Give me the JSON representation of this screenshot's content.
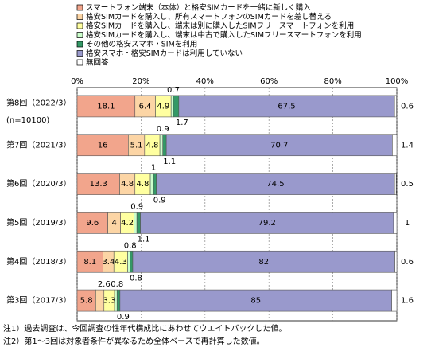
{
  "chart_data": {
    "type": "stacked_barh",
    "categories": [
      "第8回（2022/3）",
      "第7回（2021/3）",
      "第6回（2020/3）",
      "第5回（2019/3）",
      "第4回（2018/3）",
      "第3回（2017/3）"
    ],
    "n_label": "(n=10100)",
    "xlim": [
      0,
      100
    ],
    "xticks": [
      {
        "value": 0,
        "label": "0%"
      },
      {
        "value": 20,
        "label": "20%"
      },
      {
        "value": 40,
        "label": "40%"
      },
      {
        "value": 60,
        "label": "60%"
      },
      {
        "value": 80,
        "label": "80%"
      },
      {
        "value": 100,
        "label": "100%"
      }
    ],
    "grid": true,
    "series": [
      {
        "name": "スマートフォン端末（本体）と格安SIMカードを一緒に新しく購入",
        "color": "#f2a58c",
        "values": [
          18.1,
          16.0,
          13.3,
          9.6,
          8.1,
          5.8
        ]
      },
      {
        "name": "格安SIMカードを購入し、所有スマートフォンのSIMカードを差し替える",
        "color": "#fcd5a5",
        "values": [
          6.4,
          5.1,
          4.8,
          4.0,
          3.4,
          2.6
        ]
      },
      {
        "name": "格安SIMカードを購入し、端末は別に購入したSIMフリースマートフォンを利用",
        "color": "#ffffa0",
        "values": [
          4.9,
          4.8,
          4.8,
          4.2,
          4.3,
          3.3
        ]
      },
      {
        "name": "格安SIMカードを購入し、端末は中古で購入したSIMフリースマートフォンを利用",
        "color": "#ccffcc",
        "values": [
          0.7,
          0.9,
          1.0,
          0.9,
          0.8,
          0.8
        ]
      },
      {
        "name": "その他の格安スマホ・SIMを利用",
        "color": "#339966",
        "values": [
          1.7,
          1.1,
          0.9,
          1.1,
          0.8,
          0.9
        ]
      },
      {
        "name": "格安スマホ・格安SIMカードは利用していない",
        "color": "#9999cc",
        "values": [
          67.5,
          70.7,
          74.5,
          79.2,
          82.0,
          85.0
        ]
      },
      {
        "name": "無回答",
        "color": "#ffffff",
        "values": [
          0.6,
          1.4,
          0.5,
          1.0,
          0.6,
          1.6
        ]
      }
    ],
    "notes": [
      "注1）過去調査は、今回調査の性年代構成比にあわせてウエイトバックした値。",
      "注2）第1～3回は対象者条件が異なるため全体ベースで再計算した数値。"
    ]
  }
}
